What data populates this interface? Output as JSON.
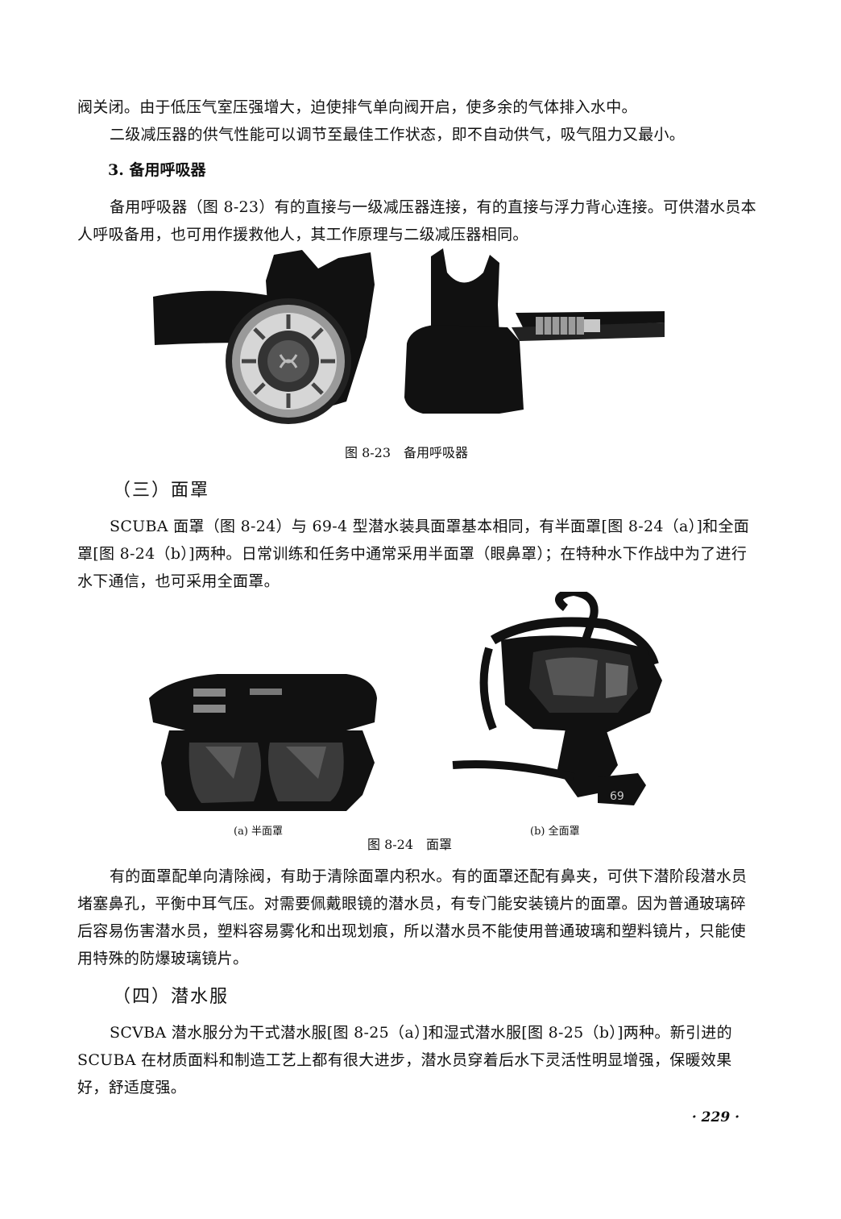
{
  "paragraphs": {
    "p1": "阀关闭。由于低压气室压强增大，迫使排气单向阀开启，使多余的气体排入水中。",
    "p2": "二级减压器的供气性能可以调节至最佳工作状态，即不自动供气，吸气阻力又最小。",
    "h3": "3. 备用呼吸器",
    "p3": "备用呼吸器（图 8-23）有的直接与一级减压器连接，有的直接与浮力背心连接。可供潜水员本人呼吸备用，也可用作援救他人，其工作原理与二级减压器相同。",
    "sec3": "（三）面罩",
    "p4": "SCUBA 面罩（图 8-24）与 69-4 型潜水装具面罩基本相同，有半面罩[图 8-24（a）]和全面罩[图 8-24（b）]两种。日常训练和任务中通常采用半面罩（眼鼻罩）；在特种水下作战中为了进行水下通信，也可采用全面罩。",
    "p5": "有的面罩配单向清除阀，有助于清除面罩内积水。有的面罩还配有鼻夹，可供下潜阶段潜水员堵塞鼻孔，平衡中耳气压。对需要佩戴眼镜的潜水员，有专门能安装镜片的面罩。因为普通玻璃碎后容易伤害潜水员，塑料容易雾化和出现划痕，所以潜水员不能使用普通玻璃和塑料镜片，只能使用特殊的防爆玻璃镜片。",
    "sec4": "（四）潜水服",
    "p6": "SCVBA 潜水服分为干式潜水服[图 8-25（a）]和湿式潜水服[图 8-25（b）]两种。新引进的 SCUBA 在材质面料和制造工艺上都有很大进步，潜水员穿着后水下灵活性明显增强，保暖效果好，舒适度强。"
  },
  "figures": {
    "fig823_caption": "图 8-23　备用呼吸器",
    "fig824_caption": "图 8-24　面罩",
    "fig824a_label": "(a) 半面罩",
    "fig824b_label": "(b) 全面罩"
  },
  "page_number": "· 229 ·"
}
